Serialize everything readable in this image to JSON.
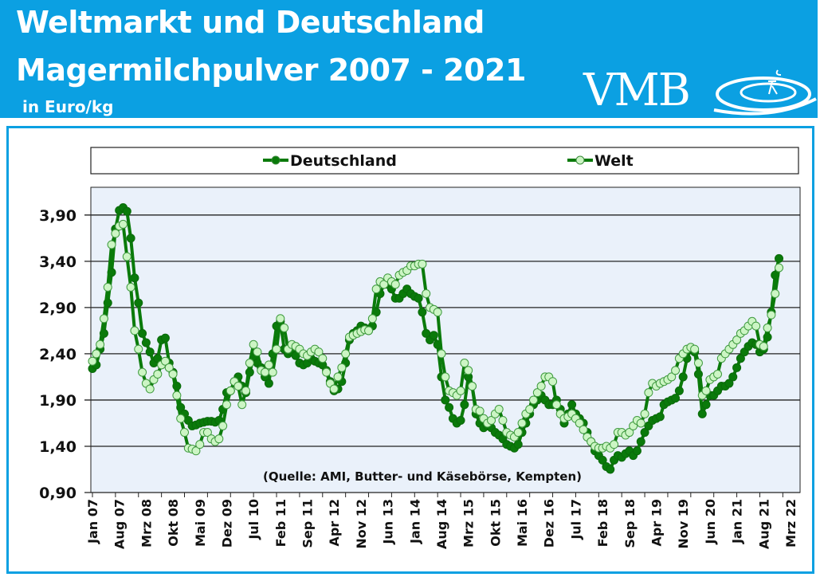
{
  "header": {
    "title_line1": "Weltmarkt und Deutschland",
    "title_line2": "Magermilchpulver 2007 - 2021",
    "unit": "in Euro/kg",
    "logo": "VMB",
    "background_color": "#0ba0e2"
  },
  "chart_data": {
    "type": "line",
    "title": "Weltmarkt und Deutschland Magermilchpulver 2007 - 2021",
    "ylabel": "in Euro/kg",
    "ylim": [
      0.9,
      4.2
    ],
    "yticks": [
      "0,90",
      "1,40",
      "1,90",
      "2,40",
      "2,90",
      "3,40",
      "3,90"
    ],
    "ytick_values": [
      0.9,
      1.4,
      1.9,
      2.4,
      2.9,
      3.4,
      3.9
    ],
    "x_start": "2007-01",
    "x_frequency": "monthly",
    "xtick_labels": [
      "Jan 07",
      "Aug 07",
      "Mrz 08",
      "Okt 08",
      "Mai 09",
      "Dez 09",
      "Jul 10",
      "Feb 11",
      "Sep 11",
      "Apr 12",
      "Nov 12",
      "Jun 13",
      "Jan 14",
      "Aug 14",
      "Mrz 15",
      "Okt 15",
      "Mai 16",
      "Dez 16",
      "Jul 17",
      "Feb 18",
      "Sep 18",
      "Apr 19",
      "Nov 19",
      "Jun 20",
      "Jan 21",
      "Aug 21",
      "Mrz 22"
    ],
    "grid": true,
    "legend": "top",
    "annotation": "(Quelle: AMI, Butter- und Käsebörse, Kempten)",
    "series": [
      {
        "name": "Deutschland",
        "color": "#0a7a0a",
        "marker_fill": "#0a7a0a",
        "values": [
          2.24,
          2.28,
          2.45,
          2.62,
          2.95,
          3.28,
          3.75,
          3.95,
          3.98,
          3.94,
          3.65,
          3.22,
          2.95,
          2.62,
          2.52,
          2.42,
          2.3,
          2.35,
          2.55,
          2.57,
          2.3,
          2.2,
          2.05,
          1.82,
          1.75,
          1.68,
          1.62,
          1.63,
          1.65,
          1.66,
          1.67,
          1.67,
          1.66,
          1.68,
          1.8,
          1.98,
          2.0,
          2.1,
          2.15,
          2.05,
          1.98,
          2.2,
          2.35,
          2.3,
          2.25,
          2.15,
          2.08,
          2.4,
          2.7,
          2.75,
          2.45,
          2.4,
          2.42,
          2.38,
          2.3,
          2.28,
          2.3,
          2.35,
          2.32,
          2.3,
          2.28,
          2.22,
          2.1,
          2.0,
          2.02,
          2.1,
          2.3,
          2.55,
          2.62,
          2.65,
          2.7,
          2.68,
          2.65,
          2.7,
          2.85,
          3.05,
          3.15,
          3.15,
          3.1,
          3.0,
          3.0,
          3.05,
          3.1,
          3.05,
          3.02,
          3.0,
          2.85,
          2.62,
          2.55,
          2.6,
          2.5,
          2.15,
          1.9,
          1.82,
          1.7,
          1.65,
          1.68,
          1.85,
          2.15,
          2.05,
          1.75,
          1.65,
          1.6,
          1.62,
          1.6,
          1.55,
          1.52,
          1.48,
          1.42,
          1.4,
          1.38,
          1.42,
          1.55,
          1.65,
          1.75,
          1.85,
          1.9,
          1.95,
          1.9,
          1.85,
          1.85,
          1.9,
          1.8,
          1.65,
          1.75,
          1.85,
          1.75,
          1.7,
          1.65,
          1.55,
          1.45,
          1.35,
          1.3,
          1.25,
          1.18,
          1.15,
          1.25,
          1.3,
          1.28,
          1.32,
          1.35,
          1.3,
          1.35,
          1.45,
          1.55,
          1.62,
          1.68,
          1.7,
          1.72,
          1.85,
          1.88,
          1.9,
          1.92,
          2.0,
          2.15,
          2.35,
          2.45,
          2.42,
          2.18,
          1.75,
          1.85,
          1.95,
          1.95,
          2.0,
          2.05,
          2.05,
          2.08,
          2.15,
          2.25,
          2.35,
          2.42,
          2.48,
          2.52,
          2.5,
          2.42,
          2.45,
          2.58,
          2.85,
          3.25,
          3.43
        ]
      },
      {
        "name": "Welt",
        "color": "#0a7a0a",
        "marker_fill": "#ccf5c4",
        "values": [
          2.32,
          2.4,
          2.5,
          2.78,
          3.12,
          3.58,
          3.7,
          3.78,
          3.8,
          3.45,
          3.12,
          2.65,
          2.45,
          2.2,
          2.08,
          2.02,
          2.12,
          2.18,
          2.28,
          2.32,
          2.25,
          2.18,
          1.95,
          1.7,
          1.55,
          1.38,
          1.37,
          1.35,
          1.42,
          1.55,
          1.55,
          1.48,
          1.45,
          1.48,
          1.62,
          1.85,
          2.0,
          2.1,
          2.05,
          1.85,
          2.0,
          2.3,
          2.5,
          2.42,
          2.22,
          2.2,
          2.28,
          2.2,
          2.45,
          2.78,
          2.68,
          2.45,
          2.5,
          2.48,
          2.45,
          2.4,
          2.38,
          2.42,
          2.45,
          2.42,
          2.35,
          2.2,
          2.08,
          2.02,
          2.15,
          2.25,
          2.4,
          2.58,
          2.6,
          2.62,
          2.64,
          2.66,
          2.65,
          2.78,
          3.1,
          3.18,
          3.15,
          3.22,
          3.18,
          3.15,
          3.25,
          3.28,
          3.3,
          3.35,
          3.35,
          3.37,
          3.37,
          3.05,
          2.9,
          2.88,
          2.85,
          2.4,
          2.15,
          2.0,
          1.98,
          1.95,
          2.0,
          2.3,
          2.22,
          2.05,
          1.8,
          1.78,
          1.7,
          1.65,
          1.68,
          1.75,
          1.8,
          1.68,
          1.55,
          1.52,
          1.5,
          1.55,
          1.65,
          1.75,
          1.8,
          1.9,
          1.98,
          2.05,
          2.15,
          2.15,
          2.1,
          1.85,
          1.75,
          1.7,
          1.72,
          1.75,
          1.7,
          1.65,
          1.58,
          1.5,
          1.45,
          1.4,
          1.38,
          1.38,
          1.4,
          1.38,
          1.42,
          1.55,
          1.55,
          1.52,
          1.55,
          1.62,
          1.68,
          1.65,
          1.75,
          1.98,
          2.08,
          2.05,
          2.08,
          2.1,
          2.12,
          2.15,
          2.22,
          2.35,
          2.4,
          2.45,
          2.47,
          2.45,
          2.3,
          1.95,
          2.0,
          2.12,
          2.15,
          2.18,
          2.35,
          2.4,
          2.45,
          2.5,
          2.55,
          2.62,
          2.65,
          2.7,
          2.75,
          2.7,
          2.5,
          2.48,
          2.68,
          2.82,
          3.05,
          3.33
        ]
      }
    ]
  }
}
